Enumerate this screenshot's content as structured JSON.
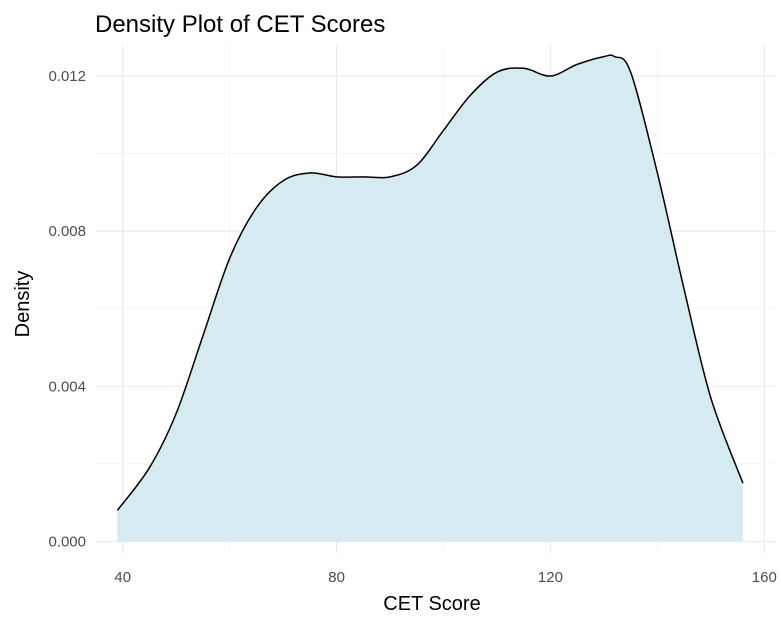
{
  "chart_data": {
    "type": "area",
    "title": "Density Plot of CET Scores",
    "xlabel": "CET Score",
    "ylabel": "Density",
    "xlim": [
      35,
      162
    ],
    "ylim": [
      -0.0003,
      0.0128
    ],
    "x_ticks": [
      40,
      80,
      120,
      160
    ],
    "x_tick_labels": [
      "40",
      "80",
      "120",
      "160"
    ],
    "y_ticks": [
      0.0,
      0.004,
      0.008,
      0.012
    ],
    "y_tick_labels": [
      "0.000",
      "0.004",
      "0.008",
      "0.012"
    ],
    "grid": true,
    "fill_color": "#d6eaf1",
    "line_color": "#000000",
    "series": [
      {
        "x": [
          39,
          45,
          50,
          55,
          60,
          65,
          70,
          75,
          80,
          85,
          90,
          95,
          100,
          105,
          110,
          115,
          120,
          125,
          130,
          132,
          135,
          140,
          145,
          150,
          156
        ],
        "y": [
          0.0008,
          0.0019,
          0.0033,
          0.0053,
          0.0073,
          0.0086,
          0.0093,
          0.0095,
          0.0094,
          0.0094,
          0.0094,
          0.0097,
          0.0106,
          0.0115,
          0.0121,
          0.0122,
          0.012,
          0.0123,
          0.0125,
          0.0125,
          0.0121,
          0.0095,
          0.0065,
          0.0037,
          0.0015
        ]
      }
    ]
  }
}
